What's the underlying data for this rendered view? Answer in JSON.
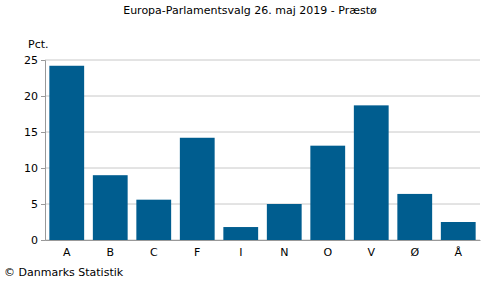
{
  "chart_data": {
    "type": "bar",
    "title": "Europa-Parlamentsvalg 26. maj 2019 - Præstø",
    "ylabel": "Pct.",
    "source": "© Danmarks Statistik",
    "categories": [
      "A",
      "B",
      "C",
      "F",
      "I",
      "N",
      "O",
      "V",
      "Ø",
      "Å"
    ],
    "values": [
      24.2,
      9.0,
      5.6,
      14.2,
      1.8,
      5.0,
      13.1,
      18.7,
      6.4,
      2.5
    ],
    "color": "#005d8f",
    "ylim": [
      0,
      25
    ],
    "yticks": [
      0,
      5,
      10,
      15,
      20,
      25
    ],
    "grid": true
  }
}
